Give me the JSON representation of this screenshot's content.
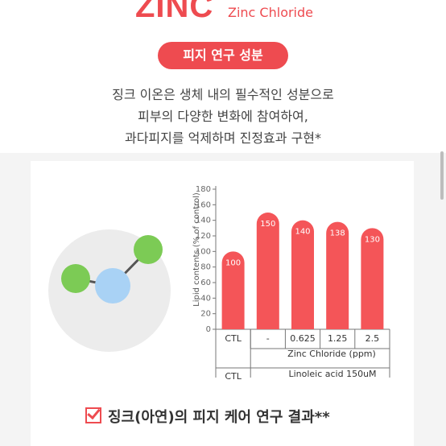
{
  "header": {
    "brand": "ZINC",
    "brand_sub": "Zinc Chloride",
    "pill_label": "피지 연구 성분",
    "desc_lines": [
      "징크 이온은 생체 내의 필수적인 성분으로",
      "피부의 다양한 변화에 참여하여,",
      "과다피지를 억제하며 진정효과 구현*"
    ]
  },
  "colors": {
    "accent": "#ee4b50",
    "bar": "#f45558",
    "atom_green": "#7ccb55",
    "atom_blue": "#a9d2f5"
  },
  "icons": [
    "molecule-icon",
    "checkbox-icon"
  ],
  "chart_data": {
    "type": "bar",
    "categories": [
      "CTL",
      "-",
      "0.625",
      "1.25",
      "2.5"
    ],
    "values": [
      100,
      150,
      140,
      138,
      130
    ],
    "ylabel": "Lipid contents (% of control)",
    "yticks": [
      0,
      20,
      40,
      60,
      80,
      100,
      120,
      140,
      160,
      180
    ],
    "ylim": [
      0,
      180
    ],
    "xlabel": "Zinc Chloride (ppm)",
    "group_label": "Linoleic acid 150uM",
    "grid": false
  },
  "footer": {
    "result_label": "징크(아연)의 피지 케어 연구 결과**"
  }
}
